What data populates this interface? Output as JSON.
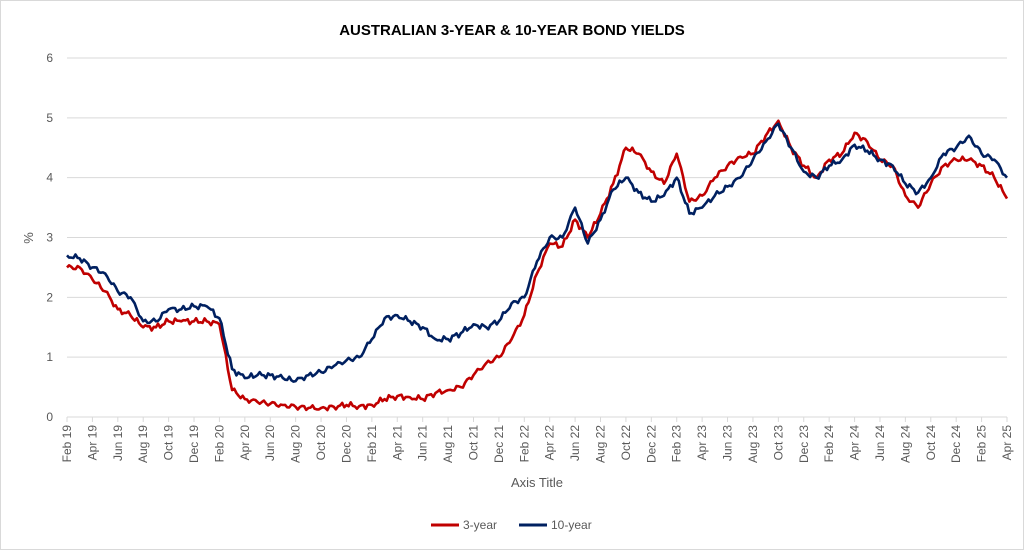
{
  "chart_data": {
    "type": "line",
    "title": "AUSTRALIAN 3-YEAR & 10-YEAR BOND YIELDS",
    "xlabel": "Axis Title",
    "ylabel": "%",
    "ylim": [
      0,
      6
    ],
    "yticks": [
      0,
      1,
      2,
      3,
      4,
      5,
      6
    ],
    "grid": "horizontal",
    "legend": "bottom-center",
    "x_tick_labels": [
      "Feb 19",
      "Apr 19",
      "Jun 19",
      "Aug 19",
      "Oct 19",
      "Dec 19",
      "Feb 20",
      "Apr 20",
      "Jun 20",
      "Aug 20",
      "Oct 20",
      "Dec 20",
      "Feb 21",
      "Apr 21",
      "Jun 21",
      "Aug 21",
      "Oct 21",
      "Dec 21",
      "Feb 22",
      "Apr 22",
      "Jun 22",
      "Aug 22",
      "Oct 22",
      "Dec 22",
      "Feb 23",
      "Apr 23",
      "Jun 23",
      "Aug 23",
      "Oct 23",
      "Dec 23",
      "Feb 24",
      "Apr 24",
      "Jun 24",
      "Aug 24",
      "Oct 24",
      "Dec 24",
      "Feb 25",
      "Apr 25"
    ],
    "x": [
      "Feb 19",
      "Mar 19",
      "Apr 19",
      "May 19",
      "Jun 19",
      "Jul 19",
      "Aug 19",
      "Sep 19",
      "Oct 19",
      "Nov 19",
      "Dec 19",
      "Jan 20",
      "Feb 20",
      "Mar 20",
      "Apr 20",
      "May 20",
      "Jun 20",
      "Jul 20",
      "Aug 20",
      "Sep 20",
      "Oct 20",
      "Nov 20",
      "Dec 20",
      "Jan 21",
      "Feb 21",
      "Mar 21",
      "Apr 21",
      "May 21",
      "Jun 21",
      "Jul 21",
      "Aug 21",
      "Sep 21",
      "Oct 21",
      "Nov 21",
      "Dec 21",
      "Jan 22",
      "Feb 22",
      "Mar 22",
      "Apr 22",
      "May 22",
      "Jun 22",
      "Jul 22",
      "Aug 22",
      "Sep 22",
      "Oct 22",
      "Nov 22",
      "Dec 22",
      "Jan 23",
      "Feb 23",
      "Mar 23",
      "Apr 23",
      "May 23",
      "Jun 23",
      "Jul 23",
      "Aug 23",
      "Sep 23",
      "Oct 23",
      "Nov 23",
      "Dec 23",
      "Jan 24",
      "Feb 24",
      "Mar 24",
      "Apr 24",
      "May 24",
      "Jun 24",
      "Jul 24",
      "Aug 24",
      "Sep 24",
      "Oct 24",
      "Nov 24",
      "Dec 24",
      "Jan 25",
      "Feb 25",
      "Mar 25",
      "Apr 25"
    ],
    "series": [
      {
        "name": "3-year",
        "color": "#c00000",
        "values": [
          2.5,
          2.5,
          2.3,
          2.1,
          1.8,
          1.7,
          1.5,
          1.5,
          1.6,
          1.6,
          1.6,
          1.6,
          1.55,
          0.45,
          0.3,
          0.25,
          0.22,
          0.2,
          0.17,
          0.15,
          0.15,
          0.17,
          0.2,
          0.18,
          0.2,
          0.3,
          0.35,
          0.33,
          0.3,
          0.4,
          0.45,
          0.5,
          0.7,
          0.9,
          1.0,
          1.3,
          1.7,
          2.4,
          2.9,
          2.85,
          3.3,
          3.0,
          3.4,
          3.9,
          4.5,
          4.4,
          4.1,
          3.9,
          4.4,
          3.6,
          3.7,
          4.0,
          4.2,
          4.35,
          4.4,
          4.7,
          4.95,
          4.5,
          4.2,
          4.0,
          4.3,
          4.4,
          4.75,
          4.6,
          4.3,
          4.2,
          3.7,
          3.5,
          3.9,
          4.2,
          4.3,
          4.3,
          4.2,
          4.0,
          3.65
        ]
      },
      {
        "name": "10-year",
        "color": "#002060",
        "values": [
          2.7,
          2.65,
          2.5,
          2.4,
          2.1,
          2.0,
          1.6,
          1.6,
          1.8,
          1.8,
          1.85,
          1.85,
          1.65,
          0.8,
          0.65,
          0.7,
          0.7,
          0.65,
          0.6,
          0.7,
          0.75,
          0.85,
          0.95,
          1.0,
          1.3,
          1.65,
          1.7,
          1.6,
          1.5,
          1.3,
          1.3,
          1.4,
          1.55,
          1.5,
          1.6,
          1.9,
          2.0,
          2.6,
          3.0,
          3.0,
          3.5,
          2.9,
          3.3,
          3.8,
          4.0,
          3.75,
          3.6,
          3.7,
          4.0,
          3.4,
          3.5,
          3.7,
          3.85,
          4.0,
          4.3,
          4.6,
          4.9,
          4.5,
          4.1,
          4.0,
          4.2,
          4.3,
          4.55,
          4.45,
          4.3,
          4.2,
          3.9,
          3.75,
          4.0,
          4.4,
          4.5,
          4.7,
          4.4,
          4.3,
          4.0
        ]
      }
    ]
  }
}
